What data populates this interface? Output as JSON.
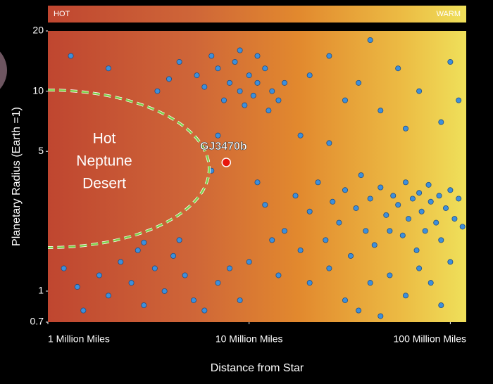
{
  "chart_data": {
    "type": "scatter",
    "band_left_label": "HOT",
    "band_right_label": "WARM",
    "x_label": "Distance from Star",
    "y_label": "Planetary Radius (Earth =1)",
    "region_label": [
      "Hot",
      "Neptune",
      "Desert"
    ],
    "log_x": true,
    "log_y": true,
    "xlim": [
      1,
      120
    ],
    "ylim": [
      0.7,
      20
    ],
    "xticks": [
      {
        "value": 1,
        "label": "1 Million Miles"
      },
      {
        "value": 10,
        "label": "10 Million Miles"
      },
      {
        "value": 100,
        "label": "100 Million Miles"
      }
    ],
    "yticks": [
      0.7,
      1,
      5,
      10,
      20
    ],
    "series": [
      {
        "color": "#3d8fdc",
        "x": [
          5.5,
          6,
          7,
          7.5,
          8,
          8.5,
          9,
          9.5,
          10,
          10.5,
          11,
          12,
          12.5,
          13,
          14,
          15,
          6.5,
          9,
          11,
          4,
          4.5,
          3.5,
          20,
          25,
          30,
          35,
          45,
          55,
          70,
          90,
          110,
          40,
          18,
          25,
          60,
          100,
          15,
          17,
          18,
          20,
          22,
          24,
          26,
          28,
          30,
          32,
          34,
          36,
          38,
          40,
          42,
          45,
          48,
          50,
          52,
          55,
          58,
          60,
          62,
          65,
          68,
          70,
          72,
          75,
          78,
          80,
          85,
          88,
          90,
          95,
          100,
          105,
          110,
          115,
          12,
          13,
          11,
          10,
          14,
          20,
          25,
          30,
          40,
          50,
          60,
          70,
          80,
          90,
          100,
          8,
          9,
          7,
          6,
          35,
          45,
          1.2,
          1.5,
          1.8,
          2,
          2.3,
          2.6,
          3,
          3.4,
          3.8,
          4.2,
          4.8,
          5.3,
          1.4,
          2.8,
          6.5,
          7,
          4.5,
          3,
          1.3,
          2
        ],
        "y": [
          12,
          10.5,
          13,
          9,
          11,
          14,
          10,
          8.5,
          12,
          9.5,
          11,
          13,
          8,
          10,
          9,
          11,
          15,
          16,
          15,
          11.5,
          14,
          10,
          12,
          15,
          9,
          11,
          8,
          13,
          10,
          7,
          9,
          18,
          6,
          5.5,
          6.5,
          14,
          2,
          3,
          1.6,
          2.5,
          3.5,
          1.8,
          2.8,
          2.2,
          3.2,
          1.5,
          2.6,
          3.8,
          2,
          2.9,
          1.7,
          3.3,
          2.4,
          2,
          3,
          2.7,
          1.9,
          3.5,
          2.3,
          2.9,
          1.6,
          3.1,
          2.5,
          2,
          3.4,
          2.8,
          2.2,
          3,
          1.8,
          2.6,
          3.2,
          2.3,
          2.9,
          2.1,
          2.7,
          1.8,
          3.5,
          1.4,
          1.2,
          1.1,
          1.3,
          0.9,
          1.1,
          1.2,
          0.95,
          1.3,
          1.1,
          0.85,
          1.4,
          1.3,
          0.9,
          1.1,
          0.8,
          0.8,
          0.75,
          1.3,
          0.8,
          1.2,
          0.95,
          1.4,
          1.1,
          0.85,
          1.3,
          1,
          1.5,
          1.2,
          0.9,
          1.05,
          1.6,
          4,
          6,
          1.8,
          1.75,
          15,
          13
        ]
      }
    ],
    "highlight": {
      "label": "GJ3470b",
      "x": 7.7,
      "y": 4.4,
      "color": "#e8160c"
    }
  }
}
